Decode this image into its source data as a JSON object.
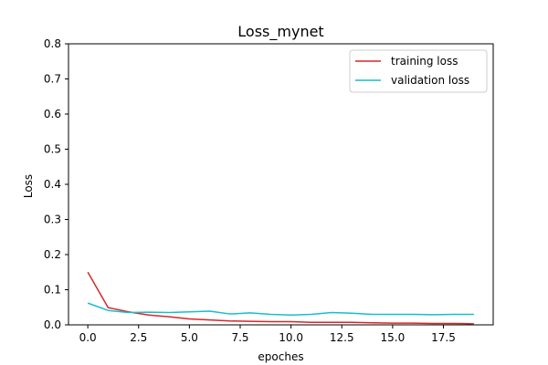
{
  "chart_data": {
    "type": "line",
    "title": "Loss_mynet",
    "xlabel": "epoches",
    "ylabel": "Loss",
    "xlim": [
      -0.95,
      19.95
    ],
    "ylim": [
      0,
      0.8
    ],
    "xticks": [
      "0.0",
      "2.5",
      "5.0",
      "7.5",
      "10.0",
      "12.5",
      "15.0",
      "17.5"
    ],
    "xtick_values": [
      0,
      2.5,
      5,
      7.5,
      10,
      12.5,
      15,
      17.5
    ],
    "yticks": [
      "0.0",
      "0.1",
      "0.2",
      "0.3",
      "0.4",
      "0.5",
      "0.6",
      "0.7",
      "0.8"
    ],
    "ytick_values": [
      0,
      0.1,
      0.2,
      0.3,
      0.4,
      0.5,
      0.6,
      0.7,
      0.8
    ],
    "grid": false,
    "legend_position": "top-right",
    "x": [
      0,
      1,
      2,
      3,
      4,
      5,
      6,
      7,
      8,
      9,
      10,
      11,
      12,
      13,
      14,
      15,
      16,
      17,
      18,
      19
    ],
    "series": [
      {
        "name": "training loss",
        "color": "#d62728",
        "values": [
          0.15,
          0.049,
          0.037,
          0.028,
          0.023,
          0.017,
          0.014,
          0.011,
          0.01,
          0.009,
          0.009,
          0.007,
          0.007,
          0.007,
          0.006,
          0.005,
          0.005,
          0.004,
          0.004,
          0.003
        ]
      },
      {
        "name": "validation loss",
        "color": "#17becf",
        "values": [
          0.062,
          0.041,
          0.035,
          0.036,
          0.035,
          0.037,
          0.039,
          0.031,
          0.034,
          0.03,
          0.028,
          0.03,
          0.035,
          0.033,
          0.03,
          0.03,
          0.03,
          0.029,
          0.03,
          0.03
        ]
      }
    ]
  }
}
